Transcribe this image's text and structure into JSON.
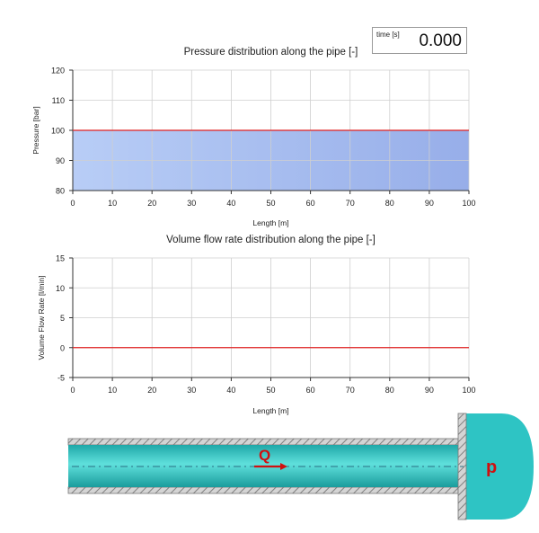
{
  "time_display": {
    "label": "time [s]",
    "value": "0.000"
  },
  "chart_data": [
    {
      "type": "area",
      "title": "Pressure distribution along the pipe [-]",
      "xlabel": "Length [m]",
      "ylabel": "Pressure [bar]",
      "xlim": [
        0,
        100
      ],
      "ylim": [
        80,
        120
      ],
      "x_ticks": [
        0,
        10,
        20,
        30,
        40,
        50,
        60,
        70,
        80,
        90,
        100
      ],
      "y_ticks": [
        80,
        90,
        100,
        110,
        120
      ],
      "grid": true,
      "series": [
        {
          "x": [
            0,
            100
          ],
          "y": [
            100,
            100
          ],
          "line_color": "#e02020",
          "fill_color": "#a9bff0"
        }
      ]
    },
    {
      "type": "line",
      "title": "Volume flow rate distribution along the pipe [-]",
      "xlabel": "Length [m]",
      "ylabel": "Volume Flow Rate [l/min]",
      "xlim": [
        0,
        100
      ],
      "ylim": [
        -5,
        15
      ],
      "x_ticks": [
        0,
        10,
        20,
        30,
        40,
        50,
        60,
        70,
        80,
        90,
        100
      ],
      "y_ticks": [
        -5,
        0,
        5,
        10,
        15
      ],
      "grid": true,
      "series": [
        {
          "x": [
            0,
            100
          ],
          "y": [
            0,
            0
          ],
          "line_color": "#e02020"
        }
      ]
    }
  ],
  "pipe_diagram": {
    "flow_label": "Q",
    "pressure_label": "p",
    "colors": {
      "fluid": "#2ec4c4",
      "wall": "#9a9a9a",
      "arrow": "#d01010"
    }
  }
}
